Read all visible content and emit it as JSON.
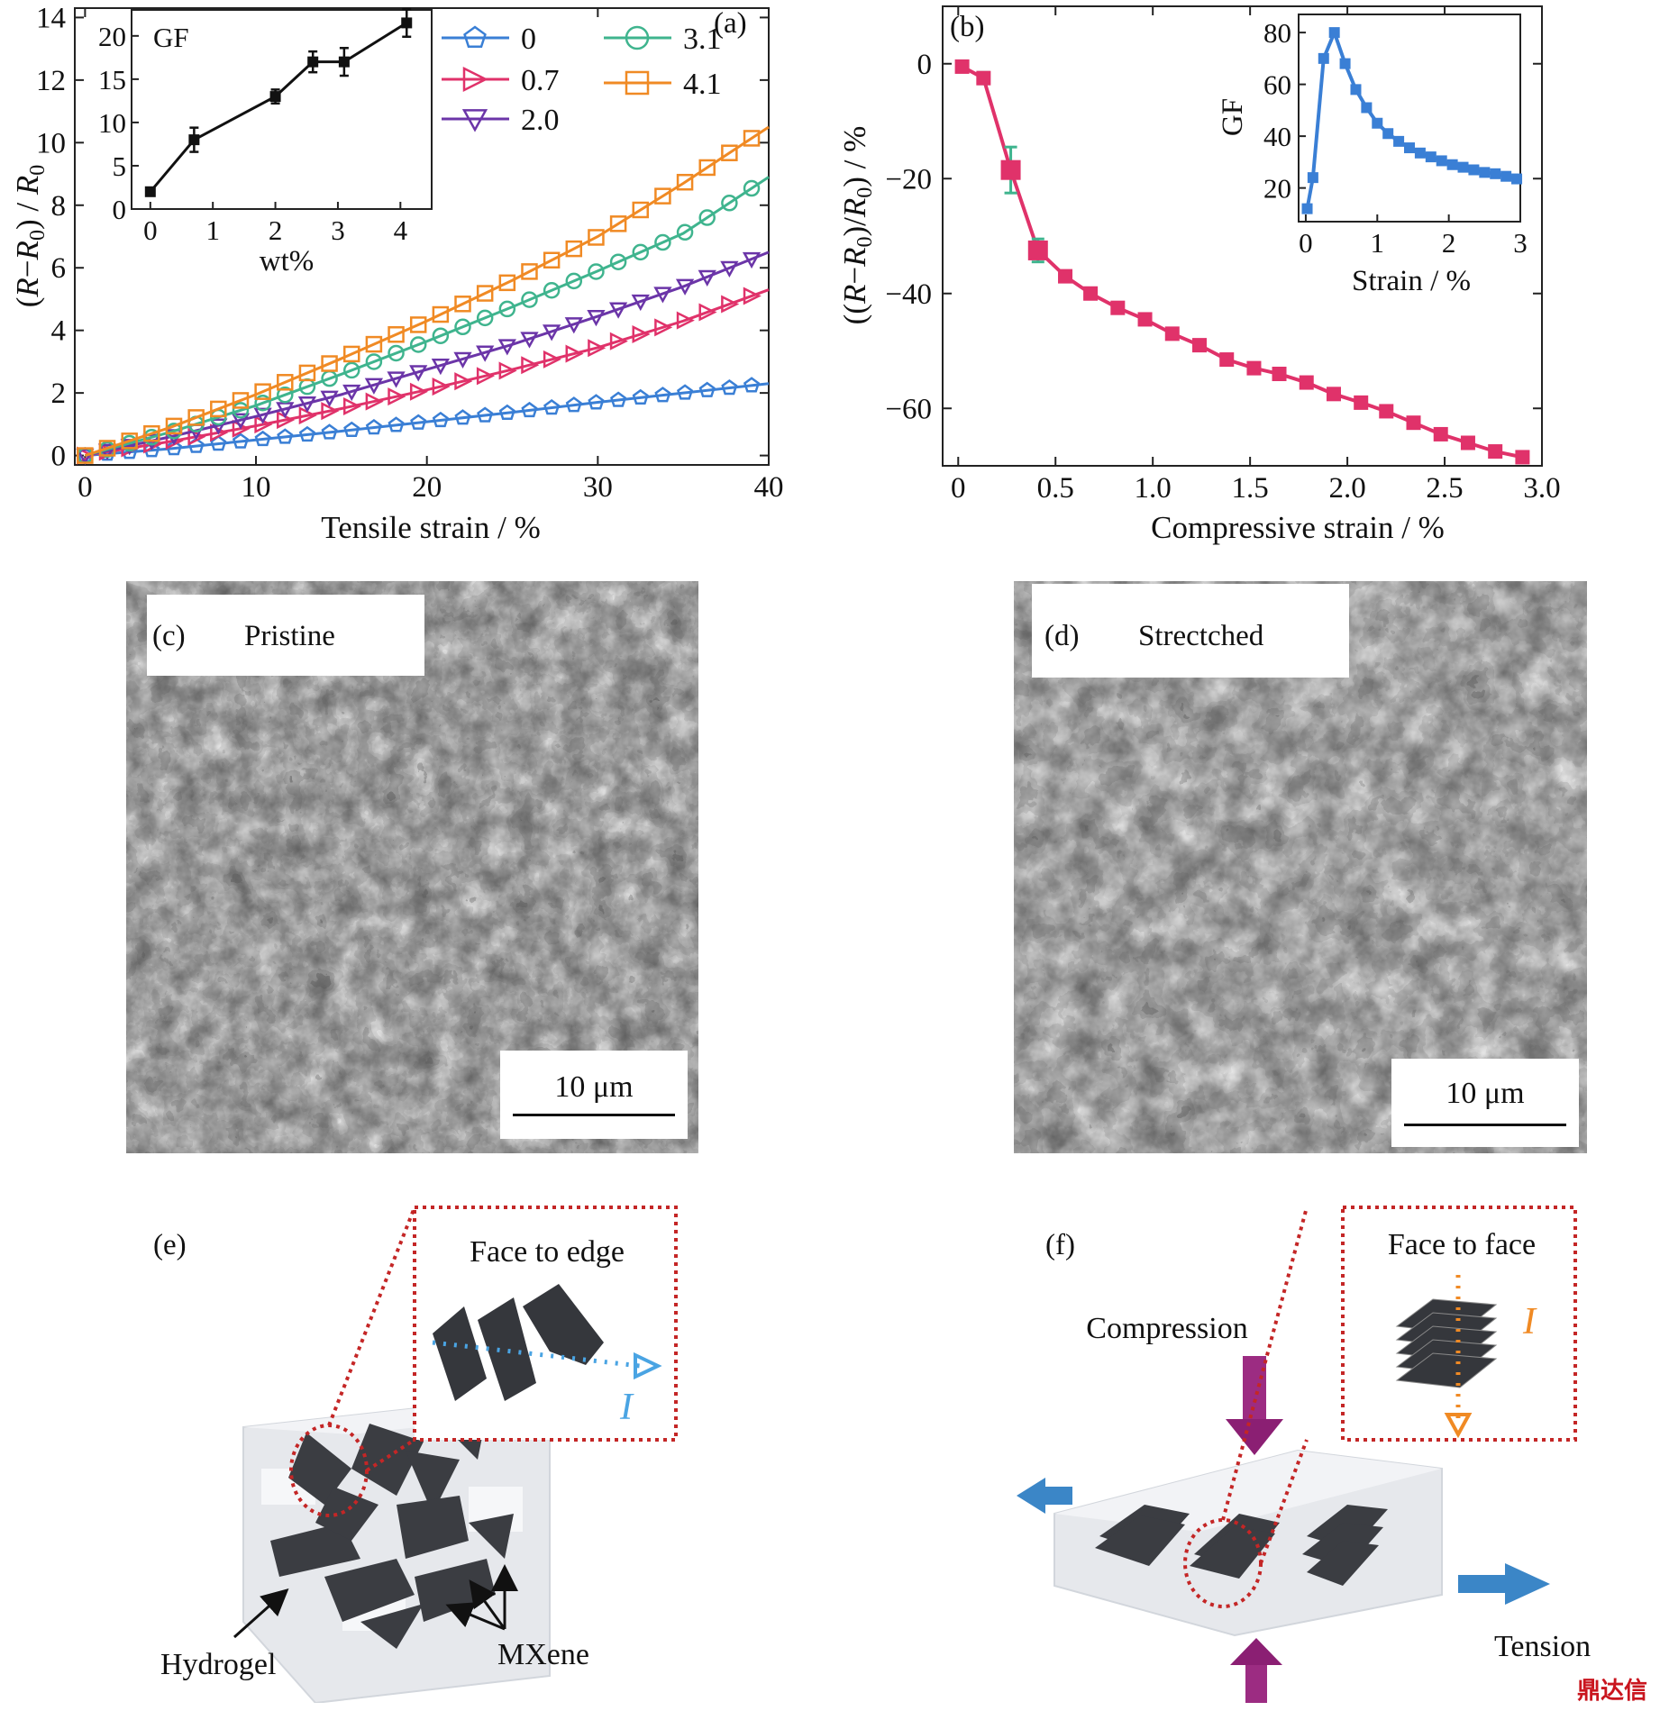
{
  "chart_data": [
    {
      "panel": "(a)",
      "type": "line",
      "xlabel": "Tensile strain / %",
      "ylabel": "(R−R0) / R0",
      "xlim": [
        0,
        40
      ],
      "ylim": [
        0,
        14
      ],
      "xticks": [
        0,
        10,
        20,
        30,
        40
      ],
      "yticks": [
        0,
        2,
        4,
        6,
        8,
        10,
        12,
        14
      ],
      "legend_position": "top-right",
      "series": [
        {
          "name": "0",
          "color": "#3a7fd5",
          "marker": "pentagon",
          "x": [
            0,
            5,
            10,
            15,
            20,
            25,
            30,
            35,
            40
          ],
          "values": [
            0,
            0.22,
            0.5,
            0.78,
            1.08,
            1.38,
            1.7,
            2.0,
            2.3
          ]
        },
        {
          "name": "0.7",
          "color": "#e0326a",
          "marker": "triangle-right",
          "x": [
            0,
            5,
            10,
            15,
            20,
            25,
            30,
            35,
            40
          ],
          "values": [
            0,
            0.45,
            0.95,
            1.5,
            2.1,
            2.75,
            3.45,
            4.3,
            5.3
          ]
        },
        {
          "name": "2.0",
          "color": "#6b35a8",
          "marker": "triangle-down",
          "x": [
            0,
            5,
            10,
            15,
            20,
            25,
            30,
            35,
            40
          ],
          "values": [
            0,
            0.6,
            1.25,
            1.95,
            2.75,
            3.55,
            4.45,
            5.4,
            6.5
          ]
        },
        {
          "name": "3.1",
          "color": "#3fb48e",
          "marker": "circle",
          "x": [
            0,
            5,
            10,
            15,
            20,
            25,
            30,
            35,
            40
          ],
          "values": [
            0,
            0.75,
            1.6,
            2.6,
            3.65,
            4.75,
            5.9,
            7.1,
            8.9
          ]
        },
        {
          "name": "4.1",
          "color": "#f08a24",
          "marker": "square",
          "x": [
            0,
            5,
            10,
            15,
            20,
            25,
            30,
            35,
            40
          ],
          "values": [
            0,
            0.9,
            1.95,
            3.1,
            4.3,
            5.6,
            7.0,
            8.7,
            10.5
          ]
        }
      ],
      "inset": {
        "type": "line",
        "title": "GF",
        "xlabel": "wt%",
        "xlim": [
          -0.3,
          4.5
        ],
        "ylim": [
          0,
          23
        ],
        "xticks": [
          0,
          1,
          2,
          3,
          4
        ],
        "yticks": [
          0,
          5,
          10,
          15,
          20
        ],
        "x": [
          0,
          0.7,
          2.0,
          2.6,
          3.1,
          4.1
        ],
        "values": [
          2.0,
          8.0,
          13.0,
          17.0,
          17.0,
          21.5
        ],
        "errors": [
          0.4,
          1.4,
          0.8,
          1.2,
          1.6,
          1.6
        ]
      }
    },
    {
      "panel": "(b)",
      "type": "line",
      "xlabel": "Compressive strain / %",
      "ylabel": "((R−R0)/R0) / %",
      "xlim": [
        -0.08,
        3.0
      ],
      "ylim": [
        -70,
        10
      ],
      "xticks": [
        0,
        0.5,
        1.0,
        1.5,
        2.0,
        2.5,
        3.0
      ],
      "xticklabels": [
        "0",
        "0.5",
        "1.0",
        "1.5",
        "2.0",
        "2.5",
        "3.0"
      ],
      "yticks": [
        0,
        -20,
        -40,
        -60
      ],
      "yticklabels": [
        "0",
        "−20",
        "−40",
        "−60"
      ],
      "series": [
        {
          "color": "#e0326a",
          "errcolor": "#3fb48e",
          "marker": "square",
          "x": [
            0.02,
            0.13,
            0.27,
            0.41,
            0.55,
            0.68,
            0.82,
            0.96,
            1.1,
            1.24,
            1.38,
            1.52,
            1.65,
            1.79,
            1.93,
            2.07,
            2.2,
            2.34,
            2.48,
            2.62,
            2.76,
            2.9
          ],
          "values": [
            -0.5,
            -2.5,
            -18.5,
            -32.5,
            -37.0,
            -40.0,
            -42.5,
            -44.5,
            -47.0,
            -49.0,
            -51.5,
            -53.0,
            -54.0,
            -55.5,
            -57.5,
            -59.0,
            -60.5,
            -62.5,
            -64.5,
            -66.0,
            -67.5,
            -68.5
          ],
          "errors": [
            0.8,
            1.0,
            4.0,
            2.0,
            0.6,
            0.5,
            0.5,
            0.5,
            0.5,
            0.5,
            0.5,
            0.5,
            0.5,
            0.5,
            0.5,
            0.5,
            0.5,
            0.5,
            0.5,
            0.5,
            0.5,
            0.5
          ]
        }
      ],
      "inset": {
        "type": "line",
        "xlabel": "Strain / %",
        "ylabel": "GF",
        "xlim": [
          -0.1,
          3.0
        ],
        "ylim": [
          7,
          87
        ],
        "xticks": [
          0,
          1,
          2,
          3
        ],
        "yticks": [
          20,
          40,
          60,
          80
        ],
        "color": "#3a7fd5",
        "x": [
          0.02,
          0.1,
          0.25,
          0.4,
          0.55,
          0.7,
          0.85,
          1.0,
          1.15,
          1.3,
          1.45,
          1.6,
          1.75,
          1.9,
          2.05,
          2.2,
          2.35,
          2.5,
          2.65,
          2.8,
          2.95
        ],
        "values": [
          12,
          24,
          70,
          80,
          68,
          58,
          51,
          45,
          41,
          38,
          35.5,
          33.5,
          32,
          30.5,
          29,
          28,
          27,
          26,
          25.5,
          24.5,
          23.5
        ]
      }
    }
  ],
  "panels": {
    "c": {
      "tag": "(c)",
      "title": "Pristine",
      "scale": "10 μm"
    },
    "d": {
      "tag": "(d)",
      "title": "Strectched",
      "scale": "10 μm"
    },
    "e": {
      "tag": "(e)",
      "inset_title": "Face to edge",
      "current": "I",
      "hydrogel": "Hydrogel",
      "mxene": "MXene"
    },
    "f": {
      "tag": "(f)",
      "inset_title": "Face to face",
      "current": "I",
      "compression": "Compression",
      "tension": "Tension"
    }
  },
  "watermark": "鼎达信"
}
